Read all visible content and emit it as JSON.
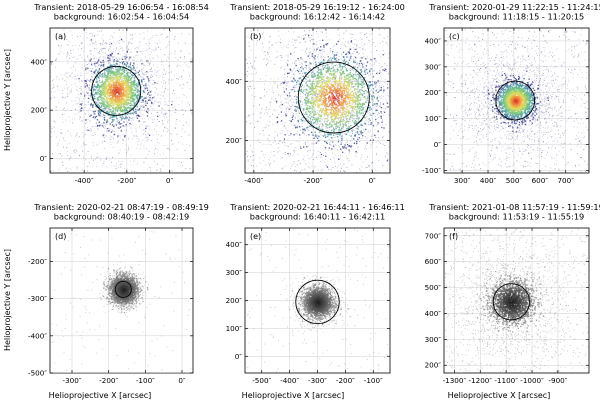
{
  "figure": {
    "xlabel": "Helioprojective X [arcsec]",
    "ylabel": "Helioprojective Y [arcsec]"
  },
  "chart_data": [
    {
      "type": "scatter",
      "label": "(a)",
      "title": [
        "Transient: 2018-05-29 16:06:54 - 16:08:54",
        "background: 16:02:54 - 16:04:54"
      ],
      "xlim": [
        -560,
        110
      ],
      "ylim": [
        -60,
        540
      ],
      "xticks": [
        -400,
        -200,
        0
      ],
      "yticks": [
        0,
        200,
        400
      ],
      "tick_suffix": "″",
      "source": {
        "x": -250,
        "y": 280,
        "radius": 115
      },
      "colormap": "heat",
      "spread": 260,
      "core": 60,
      "noise": 0.6,
      "show_xlabel": false,
      "show_ylabel": true
    },
    {
      "type": "scatter",
      "label": "(b)",
      "title": [
        "Transient: 2018-05-29 16:19:12 - 16:24:00",
        "background: 16:12:42 - 16:14:42"
      ],
      "xlim": [
        -430,
        60
      ],
      "ylim": [
        90,
        580
      ],
      "xticks": [
        -400,
        -200,
        0
      ],
      "yticks": [
        200,
        400
      ],
      "tick_suffix": "″",
      "source": {
        "x": -130,
        "y": 345,
        "radius": 120
      },
      "colormap": "heat",
      "spread": 180,
      "core": 70,
      "noise": 0.9,
      "show_xlabel": false,
      "show_ylabel": false
    },
    {
      "type": "scatter",
      "label": "(c)",
      "title": [
        "Transient: 2020-01-29 11:22:15 - 11:24:15",
        "background: 11:18:15 - 11:20:15"
      ],
      "xlim": [
        230,
        790
      ],
      "ylim": [
        -110,
        450
      ],
      "xticks": [
        300,
        400,
        500,
        600,
        700
      ],
      "yticks": [
        -100,
        0,
        100,
        200,
        300,
        400
      ],
      "tick_suffix": "″",
      "source": {
        "x": 505,
        "y": 170,
        "radius": 75
      },
      "colormap": "heat",
      "spread": 210,
      "core": 35,
      "noise": 0.7,
      "show_xlabel": false,
      "show_ylabel": false
    },
    {
      "type": "scatter",
      "label": "(d)",
      "title": [
        "Transient: 2020-02-21 08:47:19 - 08:49:19",
        "background: 08:40:19 - 08:42:19"
      ],
      "xlim": [
        -360,
        30
      ],
      "ylim": [
        -500,
        -110
      ],
      "xticks": [
        -300,
        -200,
        -100,
        0
      ],
      "yticks": [
        -500,
        -400,
        -300,
        -200
      ],
      "tick_suffix": "″",
      "source": {
        "x": -160,
        "y": -275,
        "radius": 22
      },
      "colormap": "gray",
      "spread": 45,
      "core": 18,
      "noise": 0.15,
      "show_xlabel": true,
      "show_ylabel": true
    },
    {
      "type": "scatter",
      "label": "(e)",
      "title": [
        "Transient: 2020-02-21 16:44:11 - 16:46:11",
        "background: 16:40:11 - 16:42:11"
      ],
      "xlim": [
        -560,
        -40
      ],
      "ylim": [
        -60,
        460
      ],
      "xticks": [
        -500,
        -400,
        -300,
        -200,
        -100
      ],
      "yticks": [
        0,
        100,
        200,
        300,
        400
      ],
      "tick_suffix": "″",
      "source": {
        "x": -300,
        "y": 195,
        "radius": 78
      },
      "colormap": "gray",
      "spread": 75,
      "core": 25,
      "noise": 0.2,
      "show_xlabel": true,
      "show_ylabel": false
    },
    {
      "type": "scatter",
      "label": "(f)",
      "title": [
        "Transient: 2021-01-08 11:57:19 - 11:59:19",
        "background: 11:53:19 - 11:55:19"
      ],
      "xlim": [
        -1340,
        -780
      ],
      "ylim": [
        170,
        730
      ],
      "xticks": [
        -1300,
        -1200,
        -1100,
        -1000,
        -900
      ],
      "yticks": [
        200,
        300,
        400,
        500,
        600,
        700
      ],
      "tick_suffix": "″",
      "source": {
        "x": -1080,
        "y": 445,
        "radius": 70
      },
      "colormap": "gray",
      "spread": 200,
      "core": 40,
      "noise": 0.8,
      "show_xlabel": true,
      "show_ylabel": false
    }
  ]
}
